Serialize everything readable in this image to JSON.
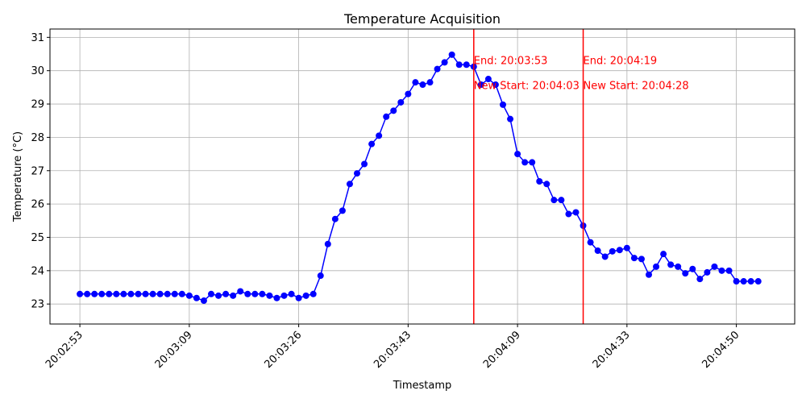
{
  "chart_data": {
    "type": "line",
    "title": "Temperature Acquisition",
    "xlabel": "Timestamp",
    "ylabel": "Temperature (°C)",
    "x_tick_labels": [
      "20:02:53",
      "20:03:09",
      "20:03:26",
      "20:03:43",
      "20:04:09",
      "20:04:33",
      "20:04:50"
    ],
    "x_tick_index": [
      0,
      15,
      30,
      45,
      60,
      75,
      90
    ],
    "yticks": [
      23,
      24,
      25,
      26,
      27,
      28,
      29,
      30,
      31
    ],
    "ylim": [
      22.4,
      31.25
    ],
    "xlim": [
      -4.1,
      98
    ],
    "grid": true,
    "series": [
      {
        "color": "#0000ff",
        "marker": "circle",
        "values": [
          23.3,
          23.3,
          23.3,
          23.3,
          23.3,
          23.3,
          23.3,
          23.3,
          23.3,
          23.3,
          23.3,
          23.3,
          23.3,
          23.3,
          23.3,
          23.25,
          23.18,
          23.1,
          23.3,
          23.25,
          23.3,
          23.25,
          23.38,
          23.3,
          23.3,
          23.3,
          23.25,
          23.18,
          23.25,
          23.3,
          23.18,
          23.25,
          23.3,
          23.85,
          24.8,
          25.55,
          25.8,
          26.6,
          26.92,
          27.2,
          27.8,
          28.05,
          28.62,
          28.8,
          29.05,
          29.3,
          29.65,
          29.58,
          29.65,
          30.05,
          30.25,
          30.48,
          30.18,
          30.18,
          30.12,
          29.58,
          29.75,
          29.58,
          28.98,
          28.55,
          27.5,
          27.25,
          27.25,
          26.68,
          26.6,
          26.12,
          26.12,
          25.7,
          25.75,
          25.35,
          24.85,
          24.6,
          24.42,
          24.58,
          24.62,
          24.68,
          24.38,
          24.35,
          23.88,
          24.12,
          24.5,
          24.18,
          24.12,
          23.92,
          24.05,
          23.75,
          23.95,
          24.12,
          24.0,
          24.0,
          23.68,
          23.68,
          23.68,
          23.68
        ]
      }
    ],
    "vlines": [
      {
        "x_index": 54,
        "color": "#ff0000",
        "end_label": "End: 20:03:53",
        "start_label": "New Start: 20:04:03"
      },
      {
        "x_index": 69,
        "color": "#ff0000",
        "end_label": "End: 20:04:19",
        "start_label": "New Start: 20:04:28"
      }
    ]
  }
}
